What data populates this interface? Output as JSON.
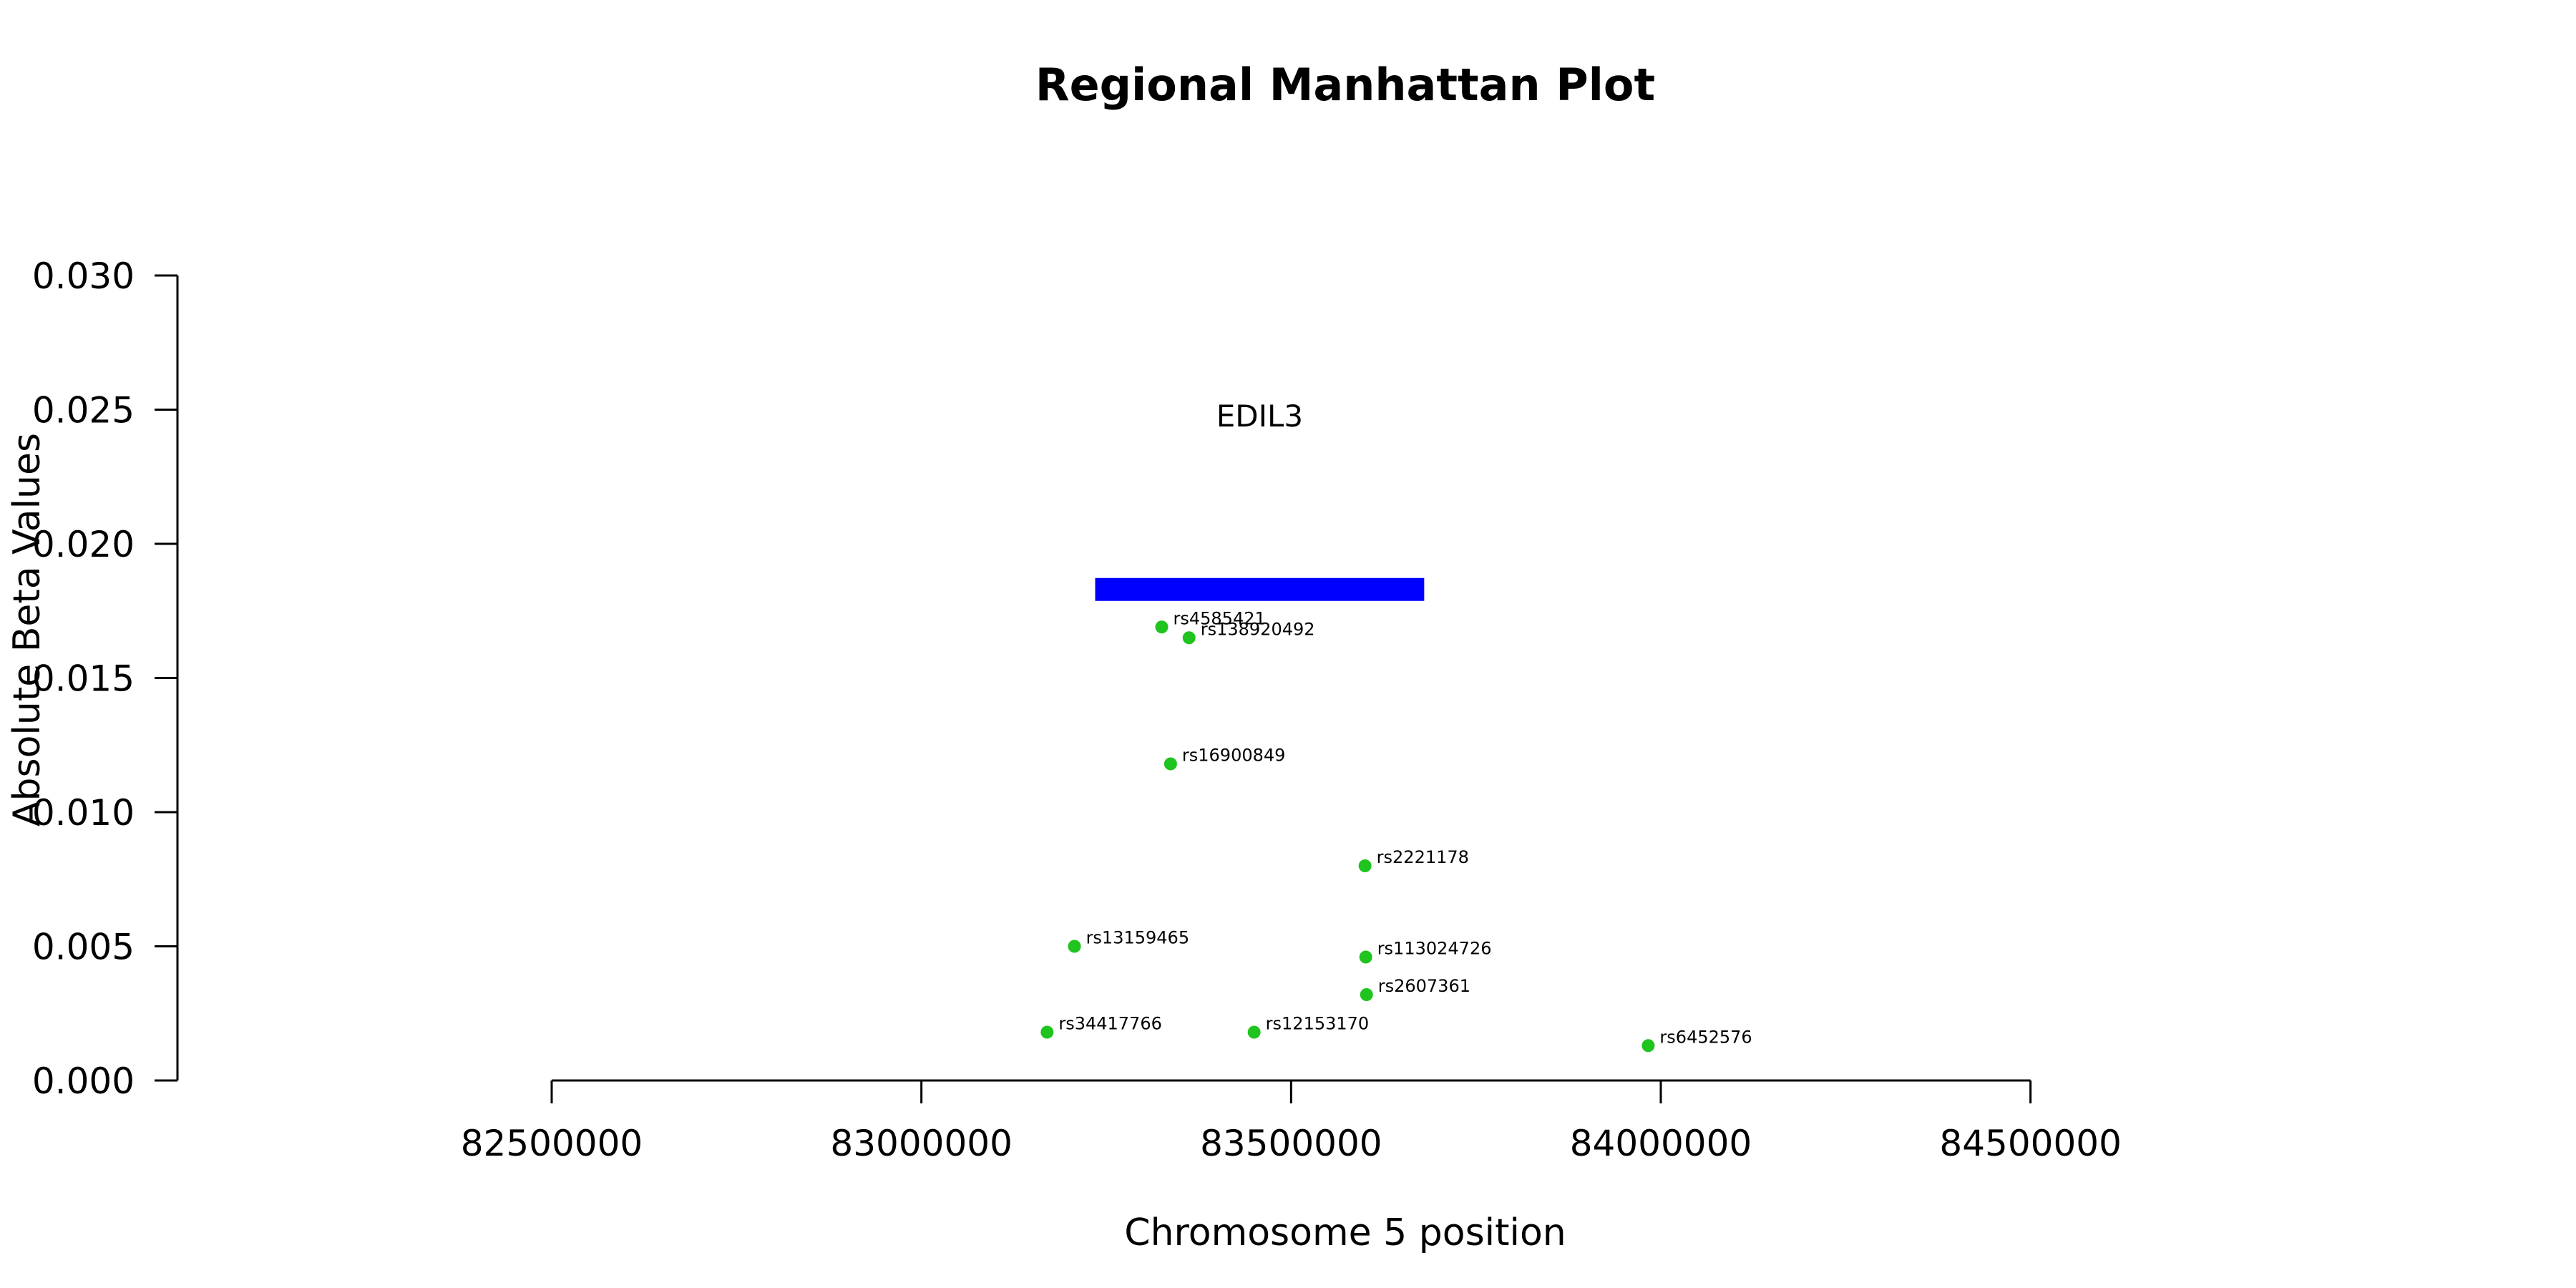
{
  "chart_data": {
    "type": "scatter",
    "title": "Regional Manhattan Plot",
    "xlabel": "Chromosome 5 position",
    "ylabel": "Absolute Beta Values",
    "xlim": [
      82170000,
      85170000
    ],
    "ylim": [
      0,
      0.03
    ],
    "x_axis_span": [
      82500000,
      84500000
    ],
    "x_ticks": [
      "82500000",
      "83000000",
      "83500000",
      "84000000",
      "84500000"
    ],
    "y_ticks": [
      "0.000",
      "0.005",
      "0.010",
      "0.015",
      "0.020",
      "0.025",
      "0.030"
    ],
    "grid": false,
    "legend": "none",
    "point_color": "#1fc41f",
    "gene": {
      "name": "EDIL3",
      "start": 83235000,
      "end": 83680000,
      "y": 0.0183,
      "label_y": 0.0248,
      "color": "#0000ff"
    },
    "points": [
      {
        "label": "rs4585421",
        "x": 83325000,
        "y": 0.0169
      },
      {
        "label": "rs138920492",
        "x": 83362000,
        "y": 0.0165
      },
      {
        "label": "rs16900849",
        "x": 83337000,
        "y": 0.0118
      },
      {
        "label": "rs2221178",
        "x": 83600000,
        "y": 0.008
      },
      {
        "label": "rs13159465",
        "x": 83207000,
        "y": 0.005
      },
      {
        "label": "rs113024726",
        "x": 83601000,
        "y": 0.0046
      },
      {
        "label": "rs2607361",
        "x": 83602000,
        "y": 0.0032
      },
      {
        "label": "rs34417766",
        "x": 83170000,
        "y": 0.0018
      },
      {
        "label": "rs12153170",
        "x": 83450000,
        "y": 0.0018
      },
      {
        "label": "rs6452576",
        "x": 83983000,
        "y": 0.0013
      }
    ]
  }
}
